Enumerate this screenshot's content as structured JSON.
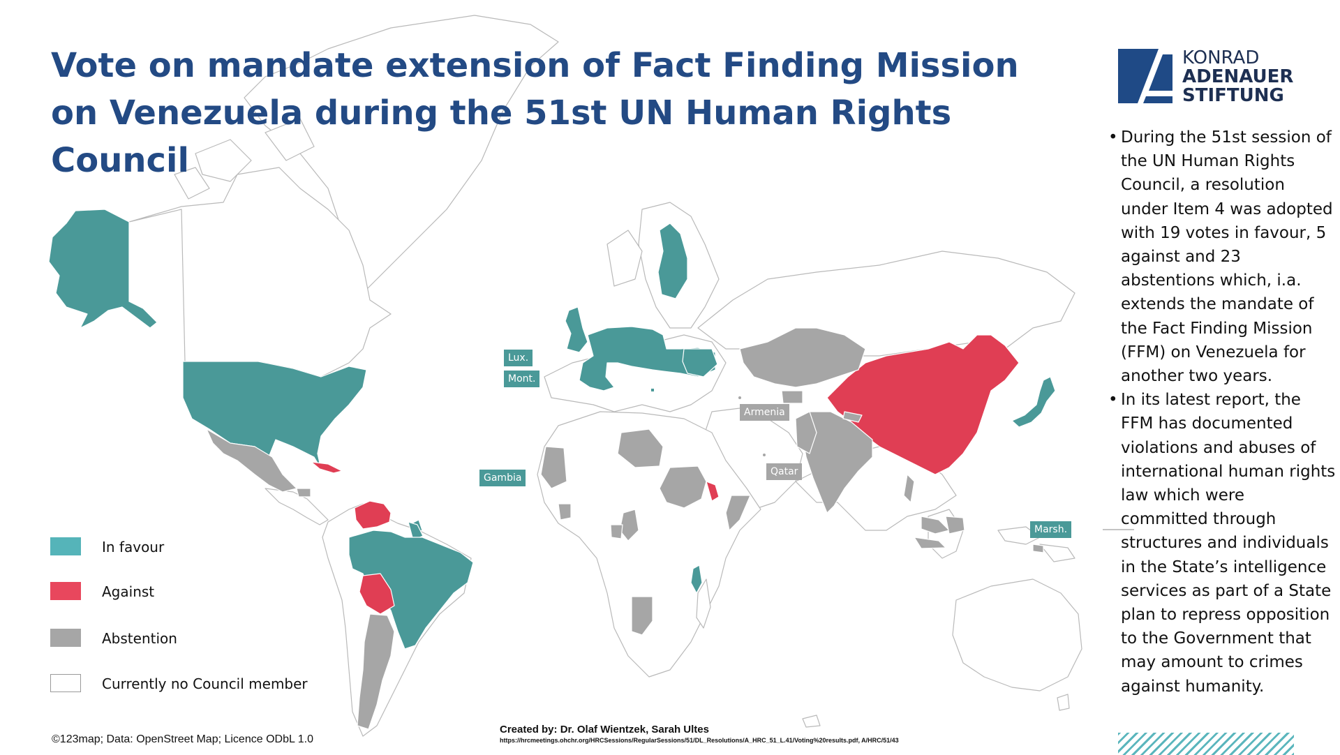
{
  "title": "Vote on mandate extension of Fact Finding Mission on Venezuela during the 51st UN Human Rights Council",
  "logo": {
    "mark_icon": "kas-logo-icon",
    "line1": "KONRAD",
    "line2": "ADENAUER",
    "line3": "STIFTUNG"
  },
  "notes": [
    "During the 51st session of the UN Human Rights Council, a resolution under Item 4 was adopted with 19 votes in favour, 5 against and 23 abstentions which, i.a. extends the mandate of the Fact Finding Mission (FFM) on Venezuela for another two years.",
    "In its latest report, the FFM has documented violations and abuses of international human rights law which were committed through structures and individuals in the State’s intelligence services as part of a State plan to repress opposition to the Government that may amount to crimes against humanity."
  ],
  "legend": [
    {
      "label": "In favour",
      "color": "#55b4b9"
    },
    {
      "label": "Against",
      "color": "#e8475d"
    },
    {
      "label": "Abstention",
      "color": "#a6a6a6"
    },
    {
      "label": "Currently no Council member",
      "color": "#ffffff"
    }
  ],
  "colors": {
    "favour": "#4a9998",
    "against": "#e03e54",
    "abstention": "#a6a6a6",
    "none": "#ffffff",
    "border": "#b9b9b9",
    "title": "#234a84"
  },
  "map_tags": {
    "lux": "Lux.",
    "mont": "Mont.",
    "gambia": "Gambia",
    "armenia": "Armenia",
    "qatar": "Qatar",
    "marsh": "Marsh."
  },
  "credit": "©123map; Data: OpenStreet Map; Licence ODbL 1.0",
  "created_by": "Created by: Dr. Olaf Wientzek, Sarah Ultes",
  "source": "https://hrcmeetings.ohchr.org/HRCSessions/RegularSessions/51/DL_Resolutions/A_HRC_51_L.41/Voting%20results.pdf, A/HRC/51/43"
}
